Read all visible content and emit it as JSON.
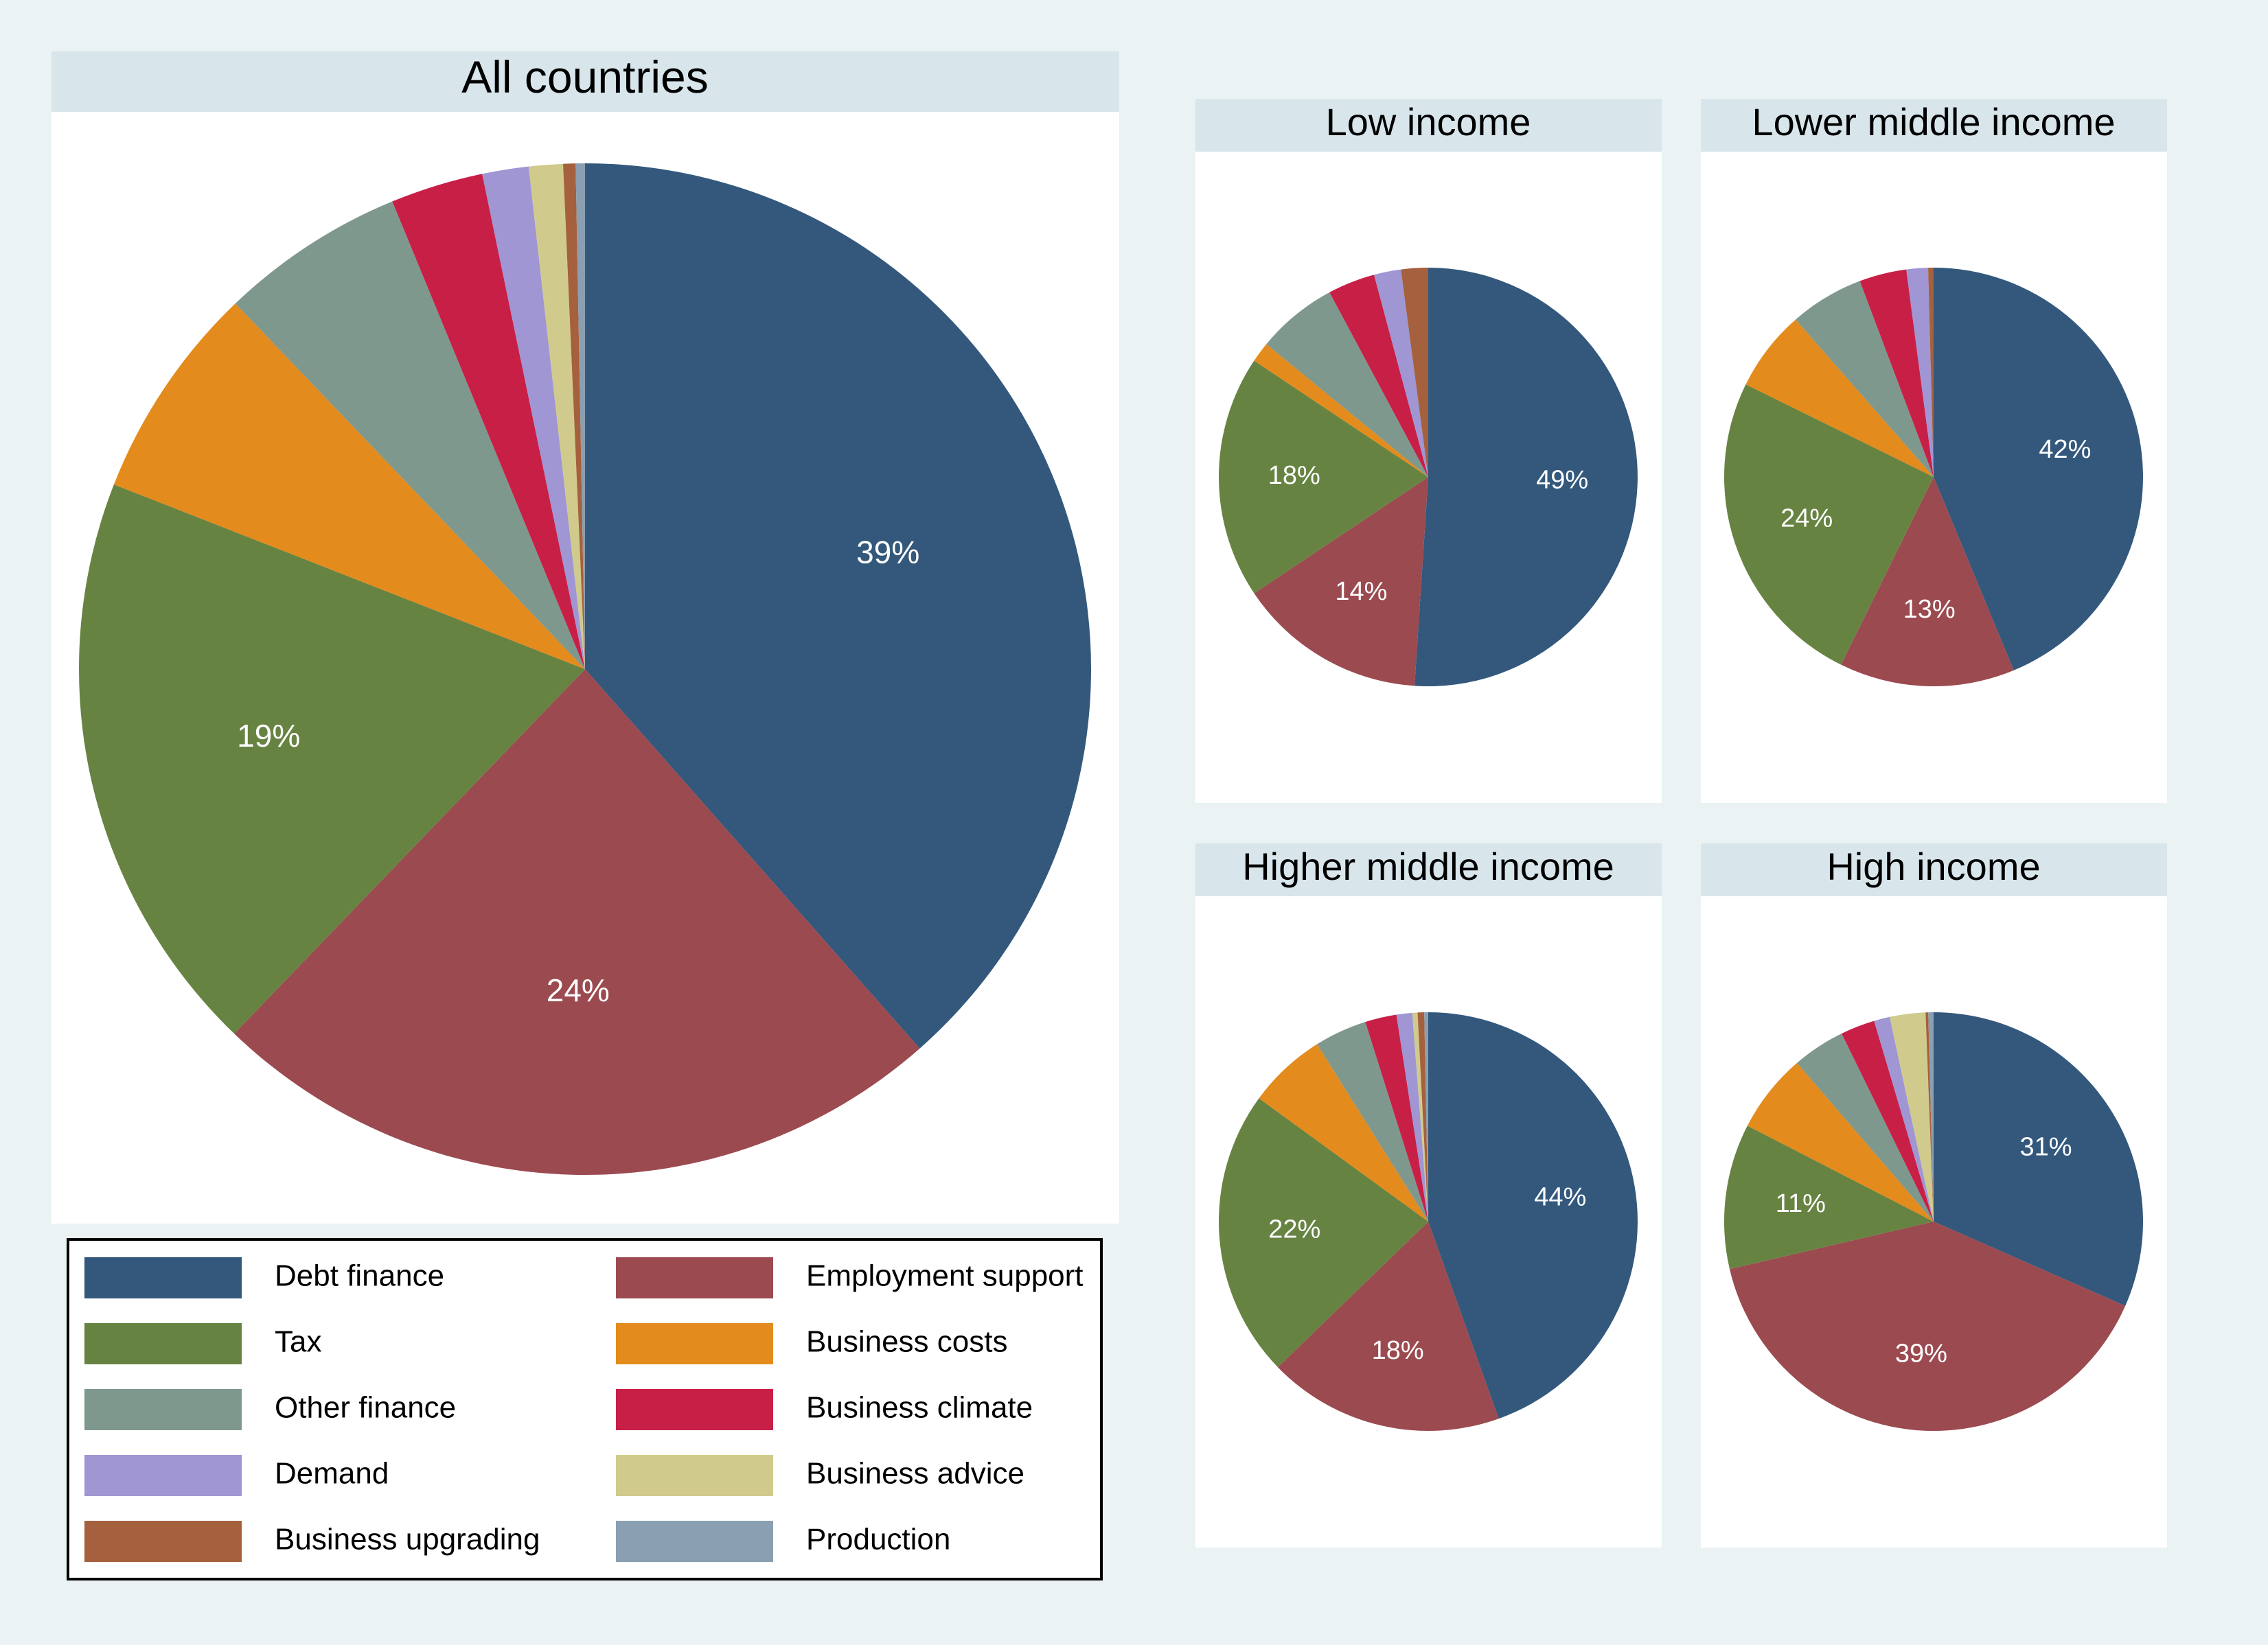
{
  "categories": [
    {
      "label": "Debt finance",
      "color": "#33587c"
    },
    {
      "label": "Employment support",
      "color": "#9b4a50"
    },
    {
      "label": "Tax",
      "color": "#678342"
    },
    {
      "label": "Business costs",
      "color": "#e38b1c"
    },
    {
      "label": "Other finance",
      "color": "#7f988d"
    },
    {
      "label": "Business climate",
      "color": "#c81f47"
    },
    {
      "label": "Demand",
      "color": "#9f96d3"
    },
    {
      "label": "Business advice",
      "color": "#d0cb8c"
    },
    {
      "label": "Business upgrading",
      "color": "#a5603d"
    },
    {
      "label": "Production",
      "color": "#8a9fb2"
    }
  ],
  "legend_order": [
    [
      "Debt finance",
      "Employment support"
    ],
    [
      "Tax",
      "Business costs"
    ],
    [
      "Other finance",
      "Business climate"
    ],
    [
      "Demand",
      "Business advice"
    ],
    [
      "Business upgrading",
      "Production"
    ]
  ],
  "chart_data": [
    {
      "type": "pie",
      "title": "All countries",
      "labels": [
        "Debt finance",
        "Employment support",
        "Tax",
        "Business costs",
        "Other finance",
        "Business climate",
        "Demand",
        "Business advice",
        "Business upgrading",
        "Production"
      ],
      "values": [
        39,
        24,
        19,
        7,
        6,
        3,
        1.5,
        1.1,
        0.4,
        0.3
      ],
      "data_labels": [
        "39%",
        "24%",
        "19%",
        "",
        "",
        "",
        "",
        "",
        "",
        ""
      ]
    },
    {
      "type": "pie",
      "title": "Low income",
      "labels": [
        "Debt finance",
        "Employment support",
        "Tax",
        "Business costs",
        "Other finance",
        "Business climate",
        "Demand",
        "Business advice",
        "Business upgrading",
        "Production"
      ],
      "values": [
        49,
        14,
        18,
        1.5,
        6,
        3.5,
        2,
        0,
        2,
        0
      ],
      "data_labels": [
        "49%",
        "14%",
        "18%",
        "",
        "",
        "",
        "",
        "",
        "",
        ""
      ]
    },
    {
      "type": "pie",
      "title": "Lower middle income",
      "labels": [
        "Debt finance",
        "Employment support",
        "Tax",
        "Business costs",
        "Other finance",
        "Business climate",
        "Demand",
        "Business advice",
        "Business upgrading",
        "Production"
      ],
      "values": [
        42,
        13,
        24,
        6,
        5.5,
        3.5,
        1.6,
        0,
        0.4,
        0
      ],
      "data_labels": [
        "42%",
        "13%",
        "24%",
        "",
        "",
        "",
        "",
        "",
        "",
        ""
      ]
    },
    {
      "type": "pie",
      "title": "Higher middle income",
      "labels": [
        "Debt finance",
        "Employment support",
        "Tax",
        "Business costs",
        "Other finance",
        "Business climate",
        "Demand",
        "Business advice",
        "Business upgrading",
        "Production"
      ],
      "values": [
        44,
        18,
        22,
        6,
        4,
        2.4,
        1.2,
        0.4,
        0.5,
        0.3
      ],
      "data_labels": [
        "44%",
        "18%",
        "22%",
        "",
        "",
        "",
        "",
        "",
        "",
        ""
      ]
    },
    {
      "type": "pie",
      "title": "High income",
      "labels": [
        "Debt finance",
        "Employment support",
        "Tax",
        "Business costs",
        "Other finance",
        "Business climate",
        "Demand",
        "Business advice",
        "Business upgrading",
        "Production"
      ],
      "values": [
        31,
        39,
        11,
        6,
        4,
        2.6,
        1.2,
        2.7,
        0.2,
        0.4
      ],
      "data_labels": [
        "31%",
        "39%",
        "11%",
        "",
        "",
        "",
        "",
        "",
        "",
        ""
      ]
    }
  ]
}
